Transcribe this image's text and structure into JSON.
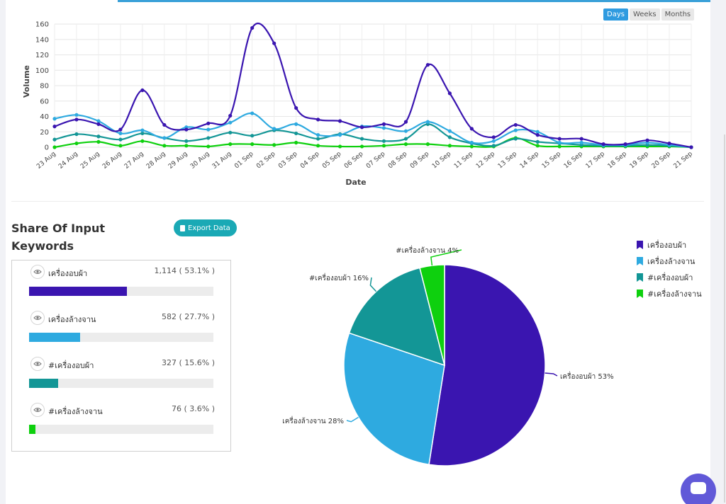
{
  "range_buttons": [
    {
      "label": "Days",
      "active": true
    },
    {
      "label": "Weeks",
      "active": false
    },
    {
      "label": "Months",
      "active": false
    }
  ],
  "share": {
    "title_line1": "Share Of Input",
    "title_line2": "Keywords",
    "export_label": "Export Data",
    "keywords": [
      {
        "name": "เครื่องอบผ้า",
        "count": "1,114 ( 53.1% )",
        "fraction": 0.531,
        "color": "#3a15b0"
      },
      {
        "name": "เครื่องล้างจาน",
        "count": "582 ( 27.7% )",
        "fraction": 0.277,
        "color": "#2eaae0"
      },
      {
        "name": "#เครื่องอบผ้า",
        "count": "327 ( 15.6% )",
        "fraction": 0.156,
        "color": "#139696"
      },
      {
        "name": "#เครื่องล้างจาน",
        "count": "76 ( 3.6% )",
        "fraction": 0.036,
        "color": "#0ed00e"
      }
    ]
  },
  "chart_data": [
    {
      "type": "line",
      "xlabel": "Date",
      "ylabel": "Volume",
      "ylim": [
        0,
        160
      ],
      "yticks": [
        "0",
        "20",
        "40",
        "60",
        "80",
        "100",
        "120",
        "140",
        "160"
      ],
      "grid": true,
      "categories": [
        "23 Aug",
        "24 Aug",
        "25 Aug",
        "26 Aug",
        "27 Aug",
        "28 Aug",
        "29 Aug",
        "30 Aug",
        "31 Aug",
        "01 Sep",
        "02 Sep",
        "03 Sep",
        "04 Sep",
        "05 Sep",
        "06 Sep",
        "07 Sep",
        "08 Sep",
        "09 Sep",
        "10 Sep",
        "11 Sep",
        "12 Sep",
        "13 Sep",
        "14 Sep",
        "15 Sep",
        "16 Sep",
        "17 Sep",
        "18 Sep",
        "19 Sep",
        "20 Sep",
        "21 Sep"
      ],
      "series": [
        {
          "color": "#3a15b0",
          "values": [
            27,
            36,
            30,
            23,
            74,
            29,
            23,
            31,
            41,
            155,
            135,
            51,
            36,
            34,
            26,
            30,
            33,
            107,
            70,
            24,
            13,
            29,
            16,
            11,
            11,
            4,
            4,
            9,
            5,
            0
          ]
        },
        {
          "color": "#2eaae0",
          "values": [
            37,
            42,
            34,
            18,
            22,
            12,
            26,
            23,
            32,
            44,
            24,
            30,
            16,
            16,
            27,
            25,
            21,
            33,
            21,
            6,
            8,
            22,
            20,
            6,
            6,
            3,
            3,
            6,
            3,
            0
          ]
        },
        {
          "color": "#139696",
          "values": [
            10,
            17,
            14,
            10,
            18,
            12,
            8,
            12,
            19,
            15,
            22,
            18,
            11,
            17,
            11,
            8,
            11,
            30,
            13,
            5,
            2,
            11,
            7,
            5,
            3,
            2,
            2,
            3,
            2,
            0
          ]
        },
        {
          "color": "#0ed00e",
          "values": [
            0,
            5,
            7,
            2,
            8,
            2,
            2,
            1,
            4,
            4,
            3,
            6,
            2,
            1,
            1,
            2,
            4,
            4,
            2,
            1,
            1,
            12,
            2,
            1,
            1,
            1,
            1,
            1,
            1,
            0
          ]
        }
      ]
    },
    {
      "type": "pie",
      "legend": "right",
      "slices": [
        {
          "name": "เครื่องอบผ้า",
          "percent": 53,
          "color": "#3a15b0",
          "label": "เครื่องอบผ้า 53%"
        },
        {
          "name": "เครื่องล้างจาน",
          "percent": 28,
          "color": "#2eaae0",
          "label": "เครื่องล้างจาน 28%"
        },
        {
          "name": "#เครื่องอบผ้า",
          "percent": 16,
          "color": "#139696",
          "label": "#เครื่องอบผ้า 16%"
        },
        {
          "name": "#เครื่องล้างจาน",
          "percent": 4,
          "color": "#0ed00e",
          "label": "#เครื่องล้างจาน 4%"
        }
      ]
    }
  ]
}
